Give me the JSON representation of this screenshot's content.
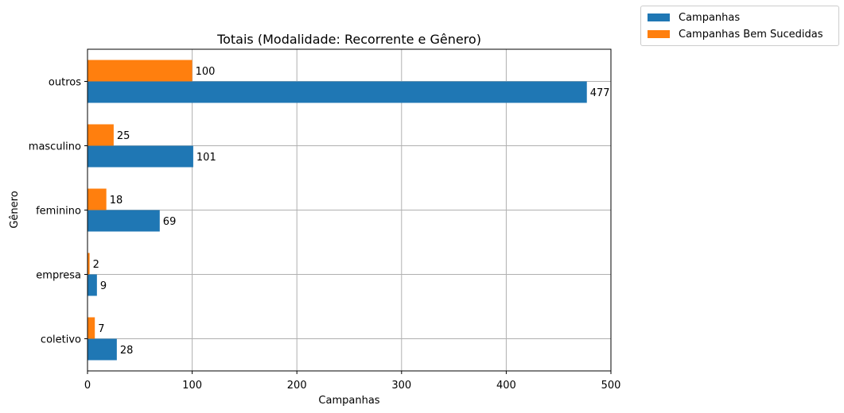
{
  "chart_data": {
    "type": "bar",
    "orientation": "horizontal",
    "title": "Totais (Modalidade: Recorrente e Gênero)",
    "xlabel": "Campanhas",
    "ylabel": "Gênero",
    "categories": [
      "coletivo",
      "empresa",
      "feminino",
      "masculino",
      "outros"
    ],
    "series": [
      {
        "name": "Campanhas",
        "color": "#1f77b4",
        "values": [
          28,
          9,
          69,
          101,
          477
        ]
      },
      {
        "name": "Campanhas Bem Sucedidas",
        "color": "#ff7f0e",
        "values": [
          7,
          2,
          18,
          25,
          100
        ]
      }
    ],
    "xlim": [
      0,
      500
    ],
    "xticks": [
      0,
      100,
      200,
      300,
      400,
      500
    ],
    "grid": true,
    "legend": "outside-top-right",
    "data_labels": true
  }
}
